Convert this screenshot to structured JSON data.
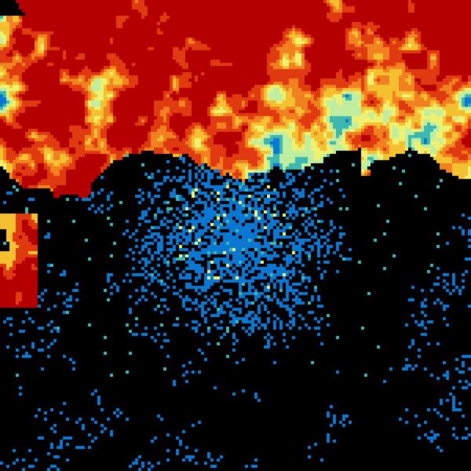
{
  "radar": {
    "background": "#000000",
    "color_scale": [
      "#3cb8b0",
      "#0a78d2",
      "#bfeea0",
      "#eef070",
      "#f4c030",
      "#f08020",
      "#e03a10",
      "#b40000"
    ]
  }
}
